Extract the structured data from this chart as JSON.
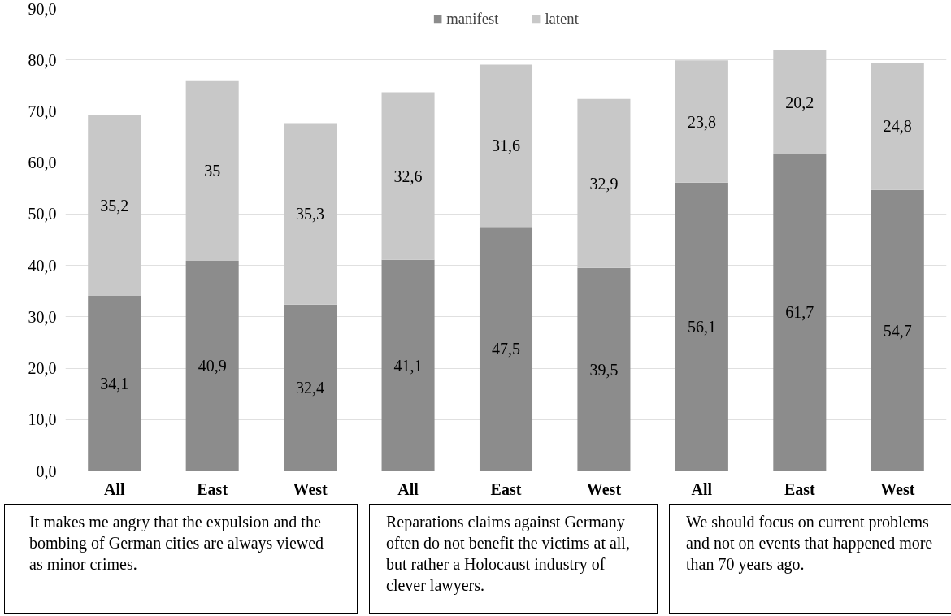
{
  "chart_data": {
    "type": "bar",
    "stacked": true,
    "categories": [
      "All",
      "East",
      "West",
      "All",
      "East",
      "West",
      "All",
      "East",
      "West"
    ],
    "series": [
      {
        "name": "manifest",
        "color": "#8c8c8c",
        "values": [
          34.1,
          40.9,
          32.4,
          41.1,
          47.5,
          39.5,
          56.1,
          61.7,
          54.7
        ],
        "value_labels": [
          "34,1",
          "40,9",
          "32,4",
          "41,1",
          "47,5",
          "39,5",
          "56,1",
          "61,7",
          "54,7"
        ]
      },
      {
        "name": "latent",
        "color": "#c8c8c8",
        "values": [
          35.2,
          35,
          35.3,
          32.6,
          31.6,
          32.9,
          23.8,
          20.2,
          24.8
        ],
        "value_labels": [
          "35,2",
          "35",
          "35,3",
          "32,6",
          "31,6",
          "32,9",
          "23,8",
          "20,2",
          "24,8"
        ]
      }
    ],
    "ylim": [
      0,
      90
    ],
    "yticks": [
      {
        "value": 0,
        "label": "0,0"
      },
      {
        "value": 10,
        "label": "10,0"
      },
      {
        "value": 20,
        "label": "20,0"
      },
      {
        "value": 30,
        "label": "30,0"
      },
      {
        "value": 40,
        "label": "40,0"
      },
      {
        "value": 50,
        "label": "50,0"
      },
      {
        "value": 60,
        "label": "60,0"
      },
      {
        "value": 70,
        "label": "70,0"
      },
      {
        "value": 80,
        "label": "80,0"
      },
      {
        "value": 90,
        "label": "90,0"
      }
    ],
    "grid": "y",
    "legend": "top",
    "annotations": [
      "It makes me angry that the expulsion and the bombing of German cities are always viewed as minor crimes.",
      "Reparations claims against Germany often do not benefit the victims at all, but rather a Holocaust industry of clever lawyers.",
      "We should focus on current problems and not on events that happened more than 70 years ago."
    ]
  }
}
